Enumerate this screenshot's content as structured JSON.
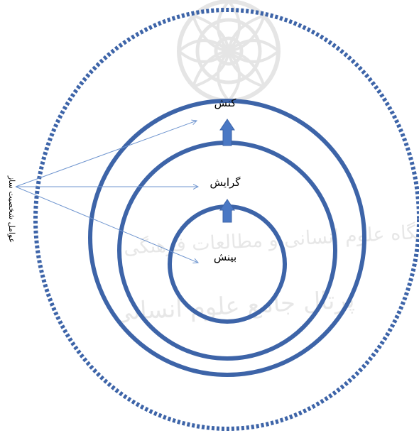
{
  "diagram": {
    "labels": {
      "outer": "کنش",
      "middle": "گرایش",
      "inner": "بینش",
      "side": "عوامل شخصیت ساز"
    },
    "watermark": {
      "line1": "پژوهشگاه علوم انسانی و مطالعات فرهنگی",
      "line2": "پرتال جامع علوم انسانی"
    },
    "colors": {
      "ring": "#3d64a8",
      "arrow": "#4a78c4",
      "dotted_ring": "#3d64a8",
      "pointer_lines": "#6f95cf",
      "watermark": "#d4d4d4"
    }
  }
}
